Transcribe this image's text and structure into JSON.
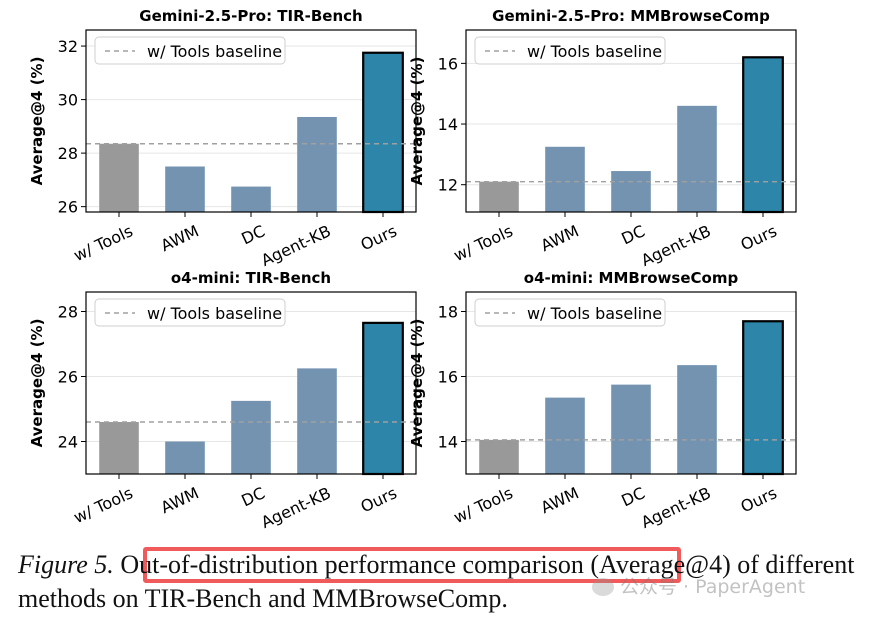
{
  "caption": {
    "label": "Figure 5.",
    "text": "Out-of-distribution performance comparison (Average@4) of different methods on TIR-Bench and MMBrowseComp."
  },
  "watermark": {
    "text": "公众号 · PaperAgent"
  },
  "colors": {
    "baseline_bar": "#999999",
    "method_bar": "#7393b0",
    "ours_bar": "#2d86a9",
    "baseline_line": "#a0a0a0",
    "highlight": "#f05a5a"
  },
  "chart_data": [
    {
      "type": "bar",
      "title": "Gemini-2.5-Pro: TIR-Bench",
      "ylabel": "Average@4 (%)",
      "categories": [
        "w/ Tools",
        "AWM",
        "DC",
        "Agent-KB",
        "Ours"
      ],
      "values": [
        28.35,
        27.5,
        26.75,
        29.35,
        31.75
      ],
      "baseline": 28.35,
      "legend": "w/ Tools baseline",
      "ylim": [
        25.8,
        32.6
      ],
      "yticks": [
        26,
        28,
        30,
        32
      ],
      "grid": true,
      "legend_position": "top-left"
    },
    {
      "type": "bar",
      "title": "Gemini-2.5-Pro: MMBrowseComp",
      "ylabel": "Average@4 (%)",
      "categories": [
        "w/ Tools",
        "AWM",
        "DC",
        "Agent-KB",
        "Ours"
      ],
      "values": [
        12.1,
        13.25,
        12.45,
        14.6,
        16.2
      ],
      "baseline": 12.1,
      "legend": "w/ Tools baseline",
      "ylim": [
        11.1,
        17.1
      ],
      "yticks": [
        12,
        14,
        16
      ],
      "grid": true,
      "legend_position": "top-left"
    },
    {
      "type": "bar",
      "title": "o4-mini: TIR-Bench",
      "ylabel": "Average@4 (%)",
      "categories": [
        "w/ Tools",
        "AWM",
        "DC",
        "Agent-KB",
        "Ours"
      ],
      "values": [
        24.6,
        24.0,
        25.25,
        26.25,
        27.65
      ],
      "baseline": 24.6,
      "legend": "w/ Tools baseline",
      "ylim": [
        23.0,
        28.6
      ],
      "yticks": [
        24,
        26,
        28
      ],
      "grid": true,
      "legend_position": "top-left"
    },
    {
      "type": "bar",
      "title": "o4-mini: MMBrowseComp",
      "ylabel": "Average@4 (%)",
      "categories": [
        "w/ Tools",
        "AWM",
        "DC",
        "Agent-KB",
        "Ours"
      ],
      "values": [
        14.05,
        15.35,
        15.75,
        16.35,
        17.7
      ],
      "baseline": 14.05,
      "legend": "w/ Tools baseline",
      "ylim": [
        13.0,
        18.6
      ],
      "yticks": [
        14,
        16,
        18
      ],
      "grid": true,
      "legend_position": "top-left"
    }
  ]
}
